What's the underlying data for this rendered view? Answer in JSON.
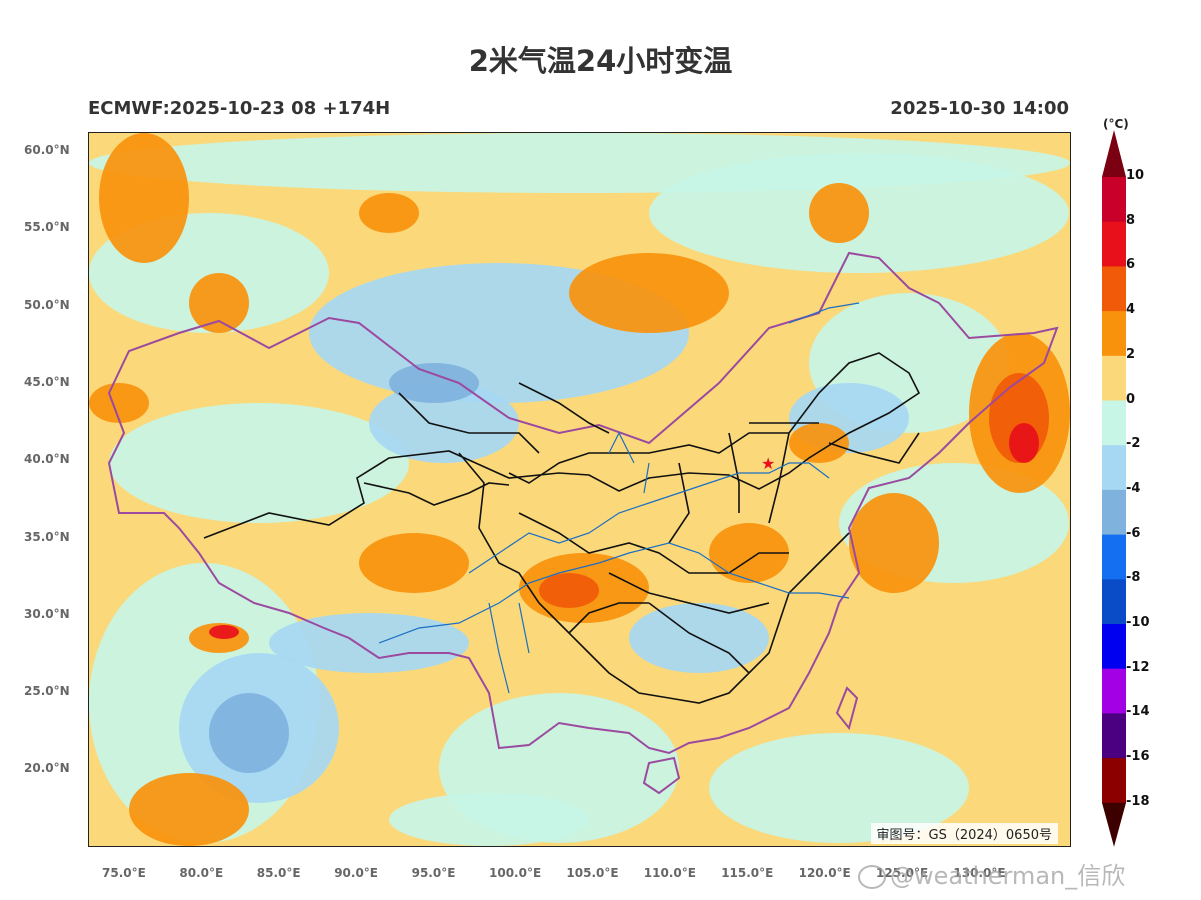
{
  "title": "2米气温24小时变温",
  "run_info": "ECMWF:2025-10-23 08 +174H",
  "valid_time": "2025-10-30 14:00",
  "colorbar": {
    "unit": "(°C)",
    "labels": [
      "10",
      "8",
      "6",
      "4",
      "2",
      "0",
      "-2",
      "-4",
      "-6",
      "-8",
      "-10",
      "-12",
      "-14",
      "-16",
      "-18"
    ],
    "colors_top_to_bottom": [
      "#7a0012",
      "#c8002a",
      "#e8101a",
      "#f05a08",
      "#f8920c",
      "#fbd97a",
      "#c7f5e6",
      "#a6d8f3",
      "#7fb2dd",
      "#1470f0",
      "#0a4bc8",
      "#0000f0",
      "#a400e6",
      "#4b0082",
      "#8c0000",
      "#3d0000"
    ]
  },
  "map": {
    "lat_labels": [
      "60.0°N",
      "55.0°N",
      "50.0°N",
      "45.0°N",
      "40.0°N",
      "35.0°N",
      "30.0°N",
      "25.0°N",
      "20.0°N"
    ],
    "lon_labels": [
      "75.0°E",
      "80.0°E",
      "85.0°E",
      "90.0°E",
      "95.0°E",
      "100.0°E",
      "105.0°E",
      "110.0°E",
      "115.0°E",
      "120.0°E",
      "125.0°E",
      "130.0°E"
    ],
    "approval_no": "审图号：GS（2024）0650号",
    "colors": {
      "cyan": "#c7f5e6",
      "lightblue": "#a6d8f3",
      "midblue": "#7fb2dd",
      "blue": "#1470f0",
      "yellow": "#fbd97a",
      "orange": "#f8920c",
      "deep_orange": "#f05a08",
      "red": "#e8101a",
      "border_purple": "#9b4aa0",
      "province_black": "#111111",
      "river_blue": "#1a6fc4"
    }
  },
  "watermark": "@weatherman_信欣"
}
